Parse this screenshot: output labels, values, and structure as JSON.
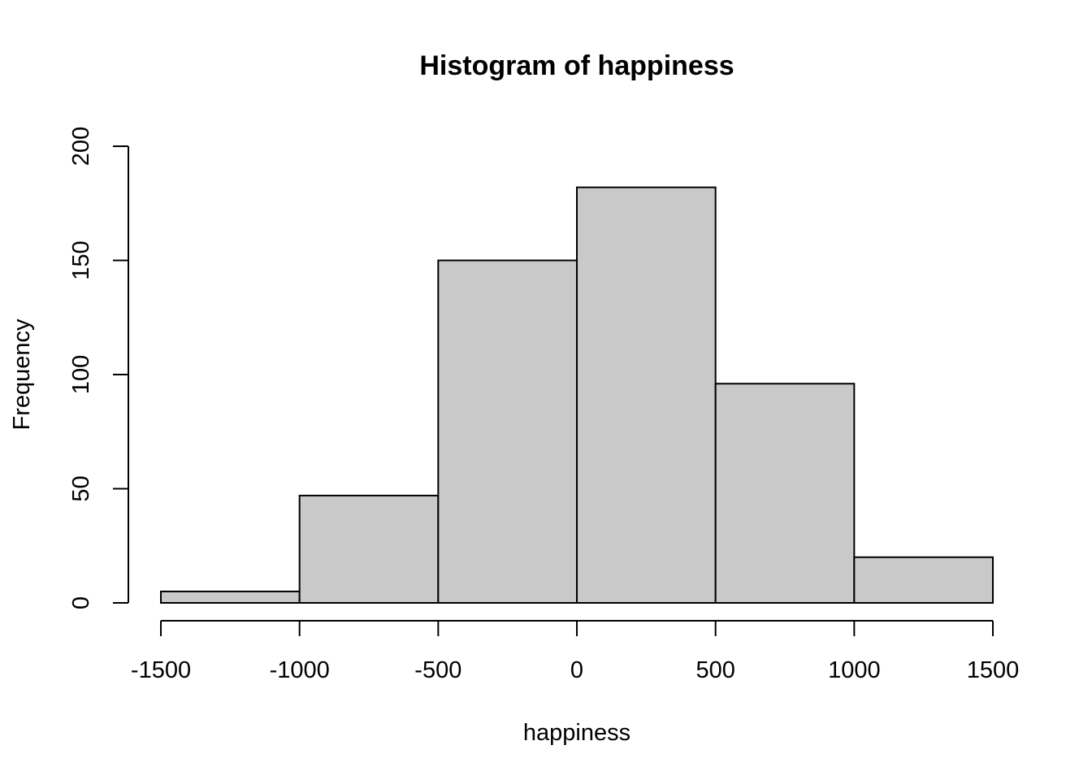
{
  "chart_data": {
    "type": "bar",
    "title": "Histogram of happiness",
    "xlabel": "happiness",
    "ylabel": "Frequency",
    "bins": [
      {
        "from": -1500,
        "to": -1000,
        "count": 5
      },
      {
        "from": -1000,
        "to": -500,
        "count": 47
      },
      {
        "from": -500,
        "to": 0,
        "count": 150
      },
      {
        "from": 0,
        "to": 500,
        "count": 182
      },
      {
        "from": 500,
        "to": 1000,
        "count": 96
      },
      {
        "from": 1000,
        "to": 1500,
        "count": 20
      }
    ],
    "xticks": [
      -1500,
      -1000,
      -500,
      0,
      500,
      1000,
      1500
    ],
    "yticks": [
      0,
      50,
      100,
      150,
      200
    ],
    "xlim": [
      -1500,
      1500
    ],
    "ylim": [
      0,
      200
    ],
    "grid": false,
    "colors": {
      "bar_fill": "#c9c9c9",
      "bar_stroke": "#000000"
    }
  }
}
